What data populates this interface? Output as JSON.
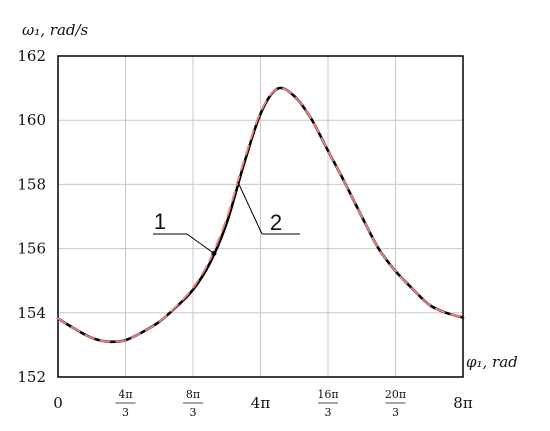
{
  "chart_data": {
    "type": "line",
    "ylabel": "ω₁, rad/s",
    "xlabel": "φ₁, rad",
    "xlim_pi": [
      0,
      8
    ],
    "ylim": [
      152,
      162
    ],
    "y_ticks": [
      152,
      154,
      156,
      158,
      160,
      162
    ],
    "x_ticks": [
      {
        "value_pi": 0,
        "label": "0"
      },
      {
        "value_pi": 1.3333,
        "num": "4π",
        "den": "3"
      },
      {
        "value_pi": 2.6667,
        "num": "8π",
        "den": "3"
      },
      {
        "value_pi": 4,
        "label": "4π"
      },
      {
        "value_pi": 5.3333,
        "num": "16π",
        "den": "3"
      },
      {
        "value_pi": 6.6667,
        "num": "20π",
        "den": "3"
      },
      {
        "value_pi": 8,
        "label": "8π"
      }
    ],
    "grid": true,
    "series": [
      {
        "name": "1",
        "color": "#000000",
        "style": "solid",
        "x_pi": [
          0,
          0.333,
          0.667,
          1.0,
          1.333,
          1.667,
          2.0,
          2.333,
          2.667,
          3.0,
          3.333,
          3.667,
          4.0,
          4.333,
          4.667,
          5.0,
          5.333,
          5.667,
          6.0,
          6.333,
          6.667,
          7.0,
          7.333,
          7.667,
          8.0
        ],
        "y": [
          153.82,
          153.5,
          153.22,
          153.1,
          153.15,
          153.4,
          153.72,
          154.18,
          154.72,
          155.55,
          156.8,
          158.6,
          160.2,
          160.98,
          160.75,
          160.05,
          159.05,
          158.05,
          157.0,
          156.0,
          155.3,
          154.75,
          154.25,
          154.0,
          153.85
        ]
      },
      {
        "name": "2",
        "color": "#e98080",
        "style": "dashed",
        "x_pi": [
          0,
          0.333,
          0.667,
          1.0,
          1.333,
          1.667,
          2.0,
          2.333,
          2.667,
          3.0,
          3.333,
          3.667,
          4.0,
          4.333,
          4.667,
          5.0,
          5.333,
          5.667,
          6.0,
          6.333,
          6.667,
          7.0,
          7.333,
          7.667,
          8.0
        ],
        "y": [
          153.82,
          153.5,
          153.22,
          153.1,
          153.15,
          153.4,
          153.72,
          154.2,
          154.78,
          155.65,
          156.95,
          158.7,
          160.25,
          160.98,
          160.75,
          160.05,
          159.05,
          158.05,
          157.0,
          156.0,
          155.3,
          154.75,
          154.25,
          154.0,
          153.85
        ]
      }
    ],
    "annotations": [
      {
        "label": "1",
        "series": "1",
        "x_pi": 3.08
      },
      {
        "label": "2",
        "series": "2",
        "x_pi": 3.55
      }
    ]
  }
}
